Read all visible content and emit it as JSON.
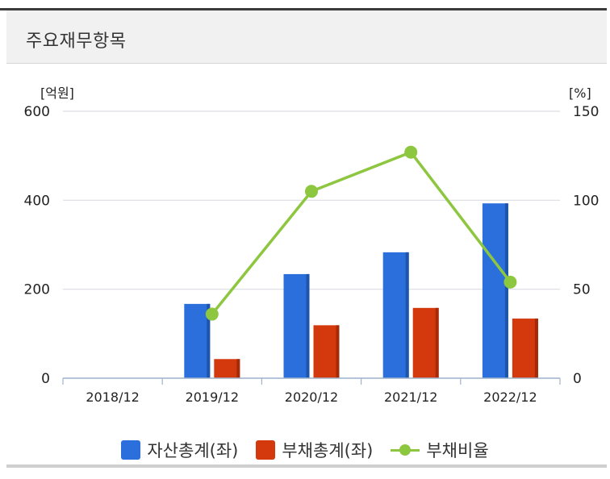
{
  "header": {
    "title": "주요재무항목"
  },
  "colors": {
    "assets": "#2a6fdb",
    "liabilities": "#d4380d",
    "ratio": "#8dc63f"
  },
  "chart_data": {
    "type": "bar",
    "categories": [
      "2018/12",
      "2019/12",
      "2020/12",
      "2021/12",
      "2022/12"
    ],
    "series": [
      {
        "name": "자산총계(좌)",
        "type": "bar",
        "axis": "left",
        "values": [
          null,
          167,
          234,
          283,
          393
        ]
      },
      {
        "name": "부채총계(좌)",
        "type": "bar",
        "axis": "left",
        "values": [
          null,
          43,
          119,
          158,
          134
        ]
      },
      {
        "name": "부채비율",
        "type": "line",
        "axis": "right",
        "values": [
          null,
          36,
          105,
          127,
          54
        ]
      }
    ],
    "y_left": {
      "unit": "[억원]",
      "ylim": [
        0,
        600
      ],
      "ticks": [
        "0",
        "200",
        "400",
        "600"
      ]
    },
    "y_right": {
      "unit": "[%]",
      "ylim": [
        0,
        150
      ],
      "ticks": [
        "0",
        "50",
        "100",
        "150"
      ]
    },
    "grid": true,
    "legend_position": "bottom"
  }
}
